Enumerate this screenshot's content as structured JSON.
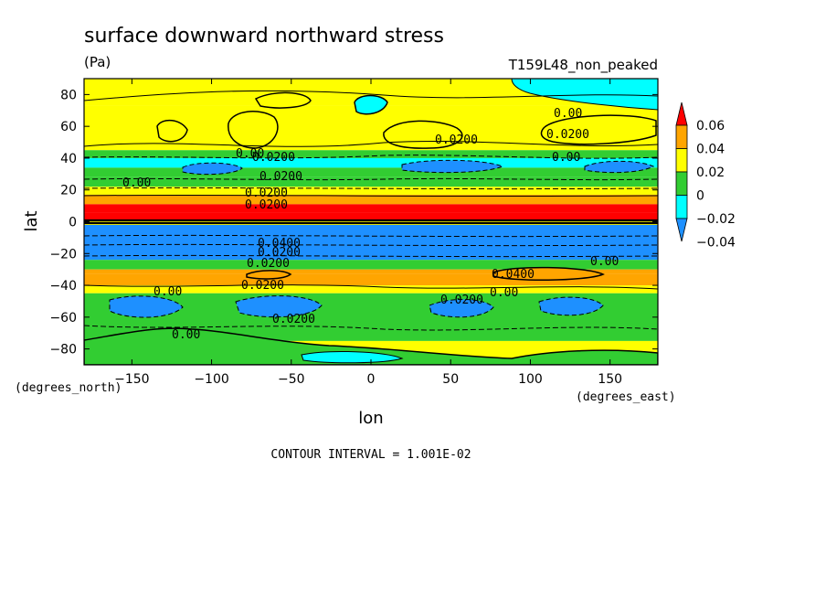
{
  "chart_data": {
    "type": "heatmap",
    "title": "surface downward northward stress",
    "units": "(Pa)",
    "dataset_label": "T159L48_non_peaked",
    "xlabel": "lon",
    "ylabel": "lat",
    "x_units": "(degrees_east)",
    "y_units": "(degrees_north)",
    "xlim": [
      -180,
      180
    ],
    "ylim": [
      -90,
      90
    ],
    "x_ticks": [
      -150,
      -100,
      -50,
      0,
      50,
      100,
      150
    ],
    "x_tick_labels": [
      "−150",
      "−100",
      "−50",
      "0",
      "50",
      "100",
      "150"
    ],
    "y_ticks": [
      80,
      60,
      40,
      20,
      0,
      -20,
      -40,
      -60,
      -80
    ],
    "y_tick_labels": [
      "80",
      "60",
      "40",
      "20",
      "0",
      "−20",
      "−40",
      "−60",
      "−80"
    ],
    "colorbar": {
      "levels": [
        -0.04,
        -0.02,
        0,
        0.02,
        0.04,
        0.06
      ],
      "labels": [
        "−0.04",
        "−0.02",
        "0",
        "0.02",
        "0.04",
        "0.06"
      ],
      "colors": [
        "#1E90FF",
        "#00FFFF",
        "#32CD32",
        "#FFFF00",
        "#FFA500",
        "#FF0000"
      ],
      "extends": "both"
    },
    "contour_interval_text": "CONTOUR INTERVAL = 1.001E-02",
    "zonal_bands": [
      {
        "lat_from": 90,
        "lat_to": 73,
        "value": 0.01
      },
      {
        "lat_from": 73,
        "lat_to": 45,
        "value": 0.005
      },
      {
        "lat_from": 45,
        "lat_to": 40,
        "value": -0.015
      },
      {
        "lat_from": 40,
        "lat_to": 34,
        "value": -0.025
      },
      {
        "lat_from": 34,
        "lat_to": 28,
        "value": -0.015
      },
      {
        "lat_from": 28,
        "lat_to": 22,
        "value": -0.005
      },
      {
        "lat_from": 22,
        "lat_to": 17,
        "value": 0.01
      },
      {
        "lat_from": 17,
        "lat_to": 11,
        "value": 0.03
      },
      {
        "lat_from": 11,
        "lat_to": 6,
        "value": 0.05
      },
      {
        "lat_from": 6,
        "lat_to": 1,
        "value": 0.07
      },
      {
        "lat_from": 1,
        "lat_to": -2,
        "value": 0.0
      },
      {
        "lat_from": -2,
        "lat_to": -24,
        "value": -0.05
      },
      {
        "lat_from": -24,
        "lat_to": -30,
        "value": -0.015
      },
      {
        "lat_from": -30,
        "lat_to": -33,
        "value": 0.03
      },
      {
        "lat_from": -33,
        "lat_to": -40,
        "value": 0.03
      },
      {
        "lat_from": -40,
        "lat_to": -45,
        "value": 0.01
      },
      {
        "lat_from": -45,
        "lat_to": -75,
        "value": -0.015
      },
      {
        "lat_from": -75,
        "lat_to": -90,
        "value": 0.005
      }
    ],
    "contour_labels": [
      "0.00",
      "0.0200",
      "0.00",
      "0.0200",
      "0.0200",
      "0.00",
      "0.0200",
      "0.00",
      "0.0200",
      "0.0200",
      "0.0400",
      "0.0200",
      "0.0400",
      "0.00",
      "0.0200",
      "0.0200",
      "0.00",
      "0.0200",
      "0.00",
      "0.0200",
      "0.00"
    ]
  }
}
